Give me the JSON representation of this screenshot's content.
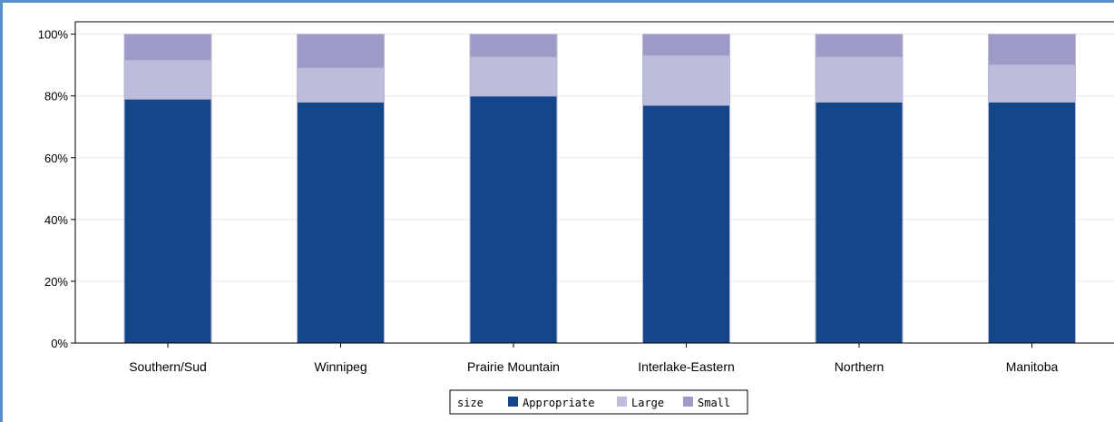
{
  "chart_data": {
    "type": "bar",
    "stacked": true,
    "categories": [
      "Southern/Sud",
      "Winnipeg",
      "Prairie Mountain",
      "Interlake-Eastern",
      "Northern",
      "Manitoba"
    ],
    "series": [
      {
        "name": "Appropriate",
        "color": "#16468a",
        "values": [
          79,
          78,
          80,
          77,
          78,
          78
        ]
      },
      {
        "name": "Large",
        "color": "#bcbddc",
        "values": [
          12.5,
          11,
          12.5,
          16,
          14.5,
          12
        ]
      },
      {
        "name": "Small",
        "color": "#9e9ac8",
        "values": [
          8.5,
          11,
          7.5,
          7,
          7.5,
          10
        ]
      }
    ],
    "yticks": [
      "0%",
      "20%",
      "40%",
      "60%",
      "80%",
      "100%"
    ],
    "ylim": [
      0,
      100
    ],
    "grid": true,
    "legend_title": "size",
    "legend_position": "bottom-center",
    "xlabel": "",
    "ylabel": ""
  }
}
